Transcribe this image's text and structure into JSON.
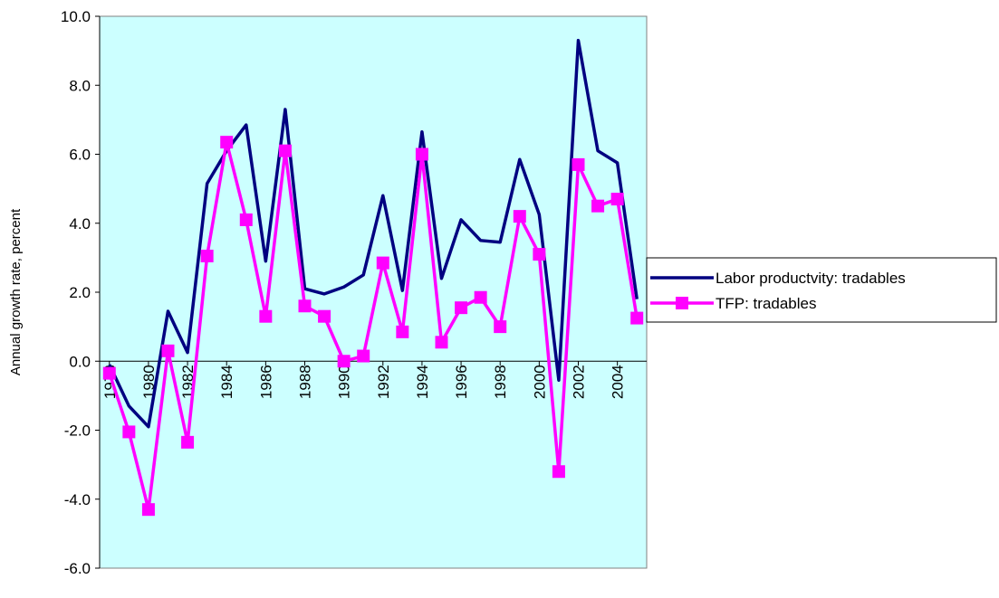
{
  "chart_data": {
    "type": "line",
    "y_label": "Annual growth rate, percent",
    "x": [
      1978,
      1979,
      1980,
      1981,
      1982,
      1983,
      1984,
      1985,
      1986,
      1987,
      1988,
      1989,
      1990,
      1991,
      1992,
      1993,
      1994,
      1995,
      1996,
      1997,
      1998,
      1999,
      2000,
      2001,
      2002,
      2003,
      2004,
      2005
    ],
    "xlim": [
      1977.5,
      2005.5
    ],
    "xticks": [
      1978,
      1980,
      1982,
      1984,
      1986,
      1988,
      1990,
      1992,
      1994,
      1996,
      1998,
      2000,
      2002,
      2004
    ],
    "ylim": [
      -6,
      10
    ],
    "yticks": [
      {
        "value": -6,
        "label": "-6.0"
      },
      {
        "value": -4,
        "label": "-4.0"
      },
      {
        "value": -2,
        "label": "-2.0"
      },
      {
        "value": 0,
        "label": "0.0"
      },
      {
        "value": 2,
        "label": "2.0"
      },
      {
        "value": 4,
        "label": "4.0"
      },
      {
        "value": 6,
        "label": "6.0"
      },
      {
        "value": 8,
        "label": "8.0"
      },
      {
        "value": 10,
        "label": "10.0"
      }
    ],
    "grid": false,
    "legend": "right",
    "background": "#ccffff",
    "series": [
      {
        "name": "Labor productvity: tradables",
        "color": "#000080",
        "marker": false,
        "values": [
          -0.1,
          -1.3,
          -1.9,
          1.45,
          0.25,
          5.15,
          6.1,
          6.85,
          2.9,
          7.3,
          2.1,
          1.95,
          2.15,
          2.5,
          4.8,
          2.05,
          6.65,
          2.4,
          4.1,
          3.5,
          3.45,
          5.85,
          4.25,
          -0.55,
          9.3,
          6.1,
          5.75,
          1.8
        ]
      },
      {
        "name": "TFP: tradables",
        "color": "#ff00ff",
        "marker": true,
        "values": [
          -0.35,
          -2.05,
          -4.3,
          0.3,
          -2.35,
          3.05,
          6.35,
          4.1,
          1.3,
          6.1,
          1.6,
          1.3,
          0.0,
          0.15,
          2.85,
          0.85,
          6.0,
          0.55,
          1.55,
          1.85,
          1.0,
          4.2,
          3.1,
          -3.2,
          5.7,
          4.5,
          4.7,
          1.25
        ]
      }
    ]
  }
}
